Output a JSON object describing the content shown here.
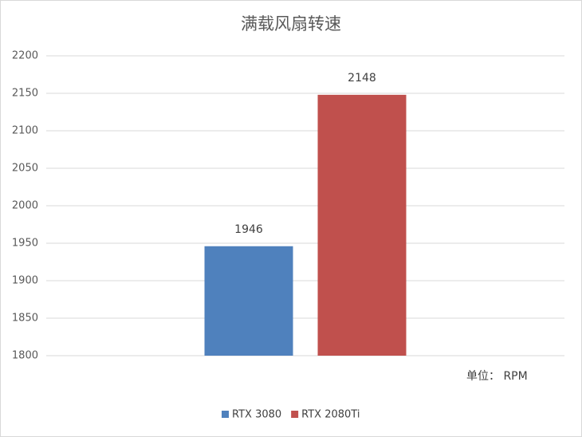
{
  "chart_data": {
    "type": "bar",
    "title": "满载风扇转速",
    "categories": [
      null
    ],
    "series": [
      {
        "name": "RTX 3080",
        "color": "#4f81bd",
        "values": [
          1946
        ]
      },
      {
        "name": "RTX 2080Ti",
        "color": "#c0504d",
        "values": [
          2148
        ]
      }
    ],
    "ylim": [
      1800,
      2200
    ],
    "yticks": [
      1800,
      1850,
      1900,
      1950,
      2000,
      2050,
      2100,
      2150,
      2200
    ],
    "grid": true,
    "legend": "bottom",
    "annotation": "单位： RPM"
  }
}
